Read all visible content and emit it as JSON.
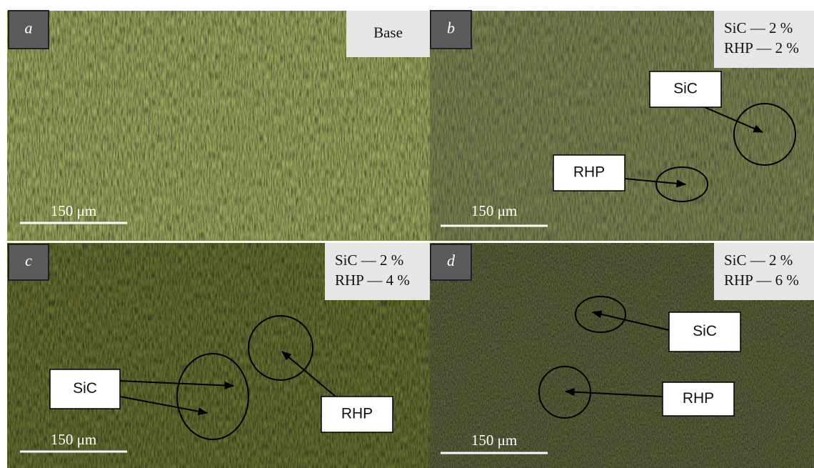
{
  "panels": [
    {
      "letter": "a",
      "composition": [
        "Base"
      ],
      "scale_bar": "150 μm",
      "annotations": []
    },
    {
      "letter": "b",
      "composition": [
        "SiC — 2 %",
        "RHP — 2 %"
      ],
      "scale_bar": "150 μm",
      "annotations": [
        {
          "label": "SiC"
        },
        {
          "label": "RHP"
        }
      ]
    },
    {
      "letter": "c",
      "composition": [
        "SiC — 2 %",
        "RHP — 4 %"
      ],
      "scale_bar": "150 μm",
      "annotations": [
        {
          "label": "SiC"
        },
        {
          "label": "RHP"
        }
      ]
    },
    {
      "letter": "d",
      "composition": [
        "SiC — 2 %",
        "RHP — 6 %"
      ],
      "scale_bar": "150 μm",
      "annotations": [
        {
          "label": "SiC"
        },
        {
          "label": "RHP"
        }
      ]
    }
  ]
}
